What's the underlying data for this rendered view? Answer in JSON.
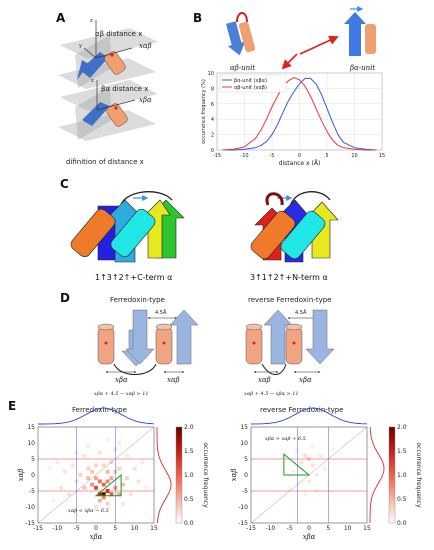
{
  "panels": {
    "a": {
      "label": "A",
      "dist_alpha": "αβ distance x",
      "x_alpha": "xαβ",
      "dist_beta": "βα distance x",
      "x_beta": "xβα",
      "caption": "difinition of distance x"
    },
    "b": {
      "label": "B",
      "unit_alpha": "αβ-unit",
      "unit_beta": "βα-unit"
    },
    "c": {
      "label": "C",
      "left": "1↑3↑2↑+C-term α",
      "right": "3↑1↑2↑+N-term α"
    },
    "d": {
      "label": "D",
      "left_title": "Ferredoxin-type",
      "right_title": "reverse Ferredoxin-type",
      "spacing": "4.5Å",
      "left_x1": "xβα",
      "left_x2": "xαβ",
      "right_x1": "xαβ",
      "right_x2": "xβα",
      "left_formula": "xβα + 4.5 − xαβ > 11",
      "right_formula": "xαβ + 4.5 − xβα > 11"
    },
    "e": {
      "label": "E",
      "left_title": "Ferredoxin-type",
      "right_title": "reverse Ferredoxin-type",
      "left_annot": "xαβ < xβα − 6.5",
      "right_annot": "xβα > xαβ + 6.5",
      "xlabel": "xβα",
      "ylabel": "xαβ",
      "cbar_label": "occurrence frequency",
      "ticks": [
        "-15",
        "-10",
        "-5",
        "0",
        "5",
        "10",
        "15"
      ],
      "cbar_ticks": [
        "0.0",
        "0.5",
        "1.0",
        "1.5",
        "2.0"
      ]
    }
  },
  "chart_data": [
    {
      "type": "line",
      "xlabel": "distance x (Å)",
      "ylabel": "occurrence frequency (%)",
      "xlim": [
        -15,
        15
      ],
      "ylim": [
        0,
        10
      ],
      "xticks": [
        "-15",
        "-10",
        "-5",
        "0",
        "5",
        "10",
        "15"
      ],
      "yticks": [
        "0",
        "2",
        "4",
        "6",
        "8",
        "10"
      ],
      "grid": true,
      "legend": "top-left",
      "x": [
        -14,
        -12,
        -10,
        -8,
        -7,
        -6,
        -5,
        -4,
        -3,
        -2,
        -1,
        0,
        1,
        2,
        3,
        4,
        5,
        6,
        7,
        8,
        10,
        12,
        14
      ],
      "series": [
        {
          "name": "βα-unit (xβα)",
          "color": "#3b57d6",
          "values": [
            0,
            0,
            0.1,
            0.3,
            0.6,
            1.1,
            2.0,
            3.3,
            4.9,
            6.4,
            7.6,
            8.6,
            9.3,
            9.3,
            8.6,
            7.2,
            5.4,
            3.6,
            2.0,
            1.0,
            0.3,
            0.1,
            0
          ]
        },
        {
          "name": "αβ-unit (xαβ)",
          "color": "#e23b3b",
          "values": [
            0,
            0.1,
            0.4,
            1.5,
            2.6,
            4.0,
            5.6,
            7.0,
            8.3,
            9.0,
            9.4,
            9.1,
            8.3,
            7.0,
            5.4,
            3.8,
            2.4,
            1.3,
            0.6,
            0.3,
            0.1,
            0,
            0
          ]
        }
      ]
    },
    {
      "type": "heatmap",
      "title": "Ferredoxin-type",
      "xlabel": "xβα",
      "ylabel": "xαβ",
      "xlim": [
        -15,
        15
      ],
      "ylim": [
        -15,
        15
      ],
      "cmax": 2.0,
      "points": [
        [
          2,
          -6,
          2.0
        ],
        [
          1,
          -6,
          1.6
        ],
        [
          3,
          -5,
          1.4
        ],
        [
          0,
          -4,
          1.2
        ],
        [
          2,
          -3,
          1.0
        ],
        [
          4,
          -6,
          1.1
        ],
        [
          1,
          -2,
          0.9
        ],
        [
          3,
          -2,
          0.8
        ],
        [
          -1,
          -3,
          0.7
        ],
        [
          5,
          -4,
          0.7
        ],
        [
          2,
          -7,
          0.8
        ],
        [
          0,
          -1,
          0.6
        ],
        [
          4,
          -1,
          0.6
        ],
        [
          -2,
          -1,
          0.5
        ],
        [
          6,
          -6,
          0.6
        ],
        [
          1,
          -8,
          0.5
        ],
        [
          3,
          1,
          0.5
        ],
        [
          -1,
          1,
          0.4
        ],
        [
          5,
          1,
          0.4
        ],
        [
          -3,
          -4,
          0.4
        ],
        [
          7,
          -3,
          0.4
        ],
        [
          -2,
          2,
          0.3
        ],
        [
          2,
          3,
          0.3
        ],
        [
          4,
          4,
          0.3
        ],
        [
          -4,
          0,
          0.3
        ],
        [
          8,
          -1,
          0.3
        ],
        [
          0,
          3,
          0.3
        ],
        [
          6,
          2,
          0.3
        ],
        [
          -5,
          -2,
          0.2
        ],
        [
          3,
          -9,
          0.3
        ],
        [
          -6,
          3,
          0.2
        ],
        [
          9,
          -6,
          0.2
        ],
        [
          -3,
          6,
          0.2
        ],
        [
          1,
          7,
          0.2
        ],
        [
          10,
          2,
          0.2
        ],
        [
          -7,
          -6,
          0.2
        ],
        [
          5,
          8,
          0.2
        ],
        [
          -8,
          1,
          0.2
        ],
        [
          11,
          -2,
          0.2
        ],
        [
          -9,
          -4,
          0.2
        ],
        [
          6,
          10,
          0.15
        ],
        [
          -10,
          4,
          0.15
        ],
        [
          12,
          4,
          0.15
        ],
        [
          0,
          -10,
          0.2
        ],
        [
          -11,
          -8,
          0.1
        ],
        [
          8,
          6,
          0.15
        ],
        [
          -2,
          9,
          0.15
        ],
        [
          3,
          11,
          0.1
        ],
        [
          -12,
          2,
          0.1
        ],
        [
          13,
          -4,
          0.1
        ],
        [
          7,
          -9,
          0.15
        ],
        [
          -5,
          7,
          0.15
        ]
      ]
    },
    {
      "type": "heatmap",
      "title": "reverse Ferredoxin-type",
      "xlabel": "xβα",
      "ylabel": "xαβ",
      "xlim": [
        -15,
        15
      ],
      "ylim": [
        -15,
        15
      ],
      "cmax": 2.0,
      "points": [
        [
          0,
          5,
          0.3
        ],
        [
          1,
          3,
          0.2
        ],
        [
          -1,
          6,
          0.25
        ],
        [
          2,
          0,
          0.15
        ],
        [
          -2,
          4,
          0.2
        ],
        [
          0,
          -2,
          0.15
        ],
        [
          3,
          6,
          0.15
        ],
        [
          -3,
          8,
          0.1
        ],
        [
          1,
          9,
          0.1
        ],
        [
          4,
          2,
          0.1
        ],
        [
          -4,
          1,
          0.1
        ],
        [
          2,
          -5,
          0.1
        ],
        [
          -1,
          -6,
          0.1
        ],
        [
          5,
          -3,
          0.08
        ],
        [
          -5,
          -4,
          0.08
        ],
        [
          6,
          8,
          0.08
        ]
      ]
    }
  ]
}
